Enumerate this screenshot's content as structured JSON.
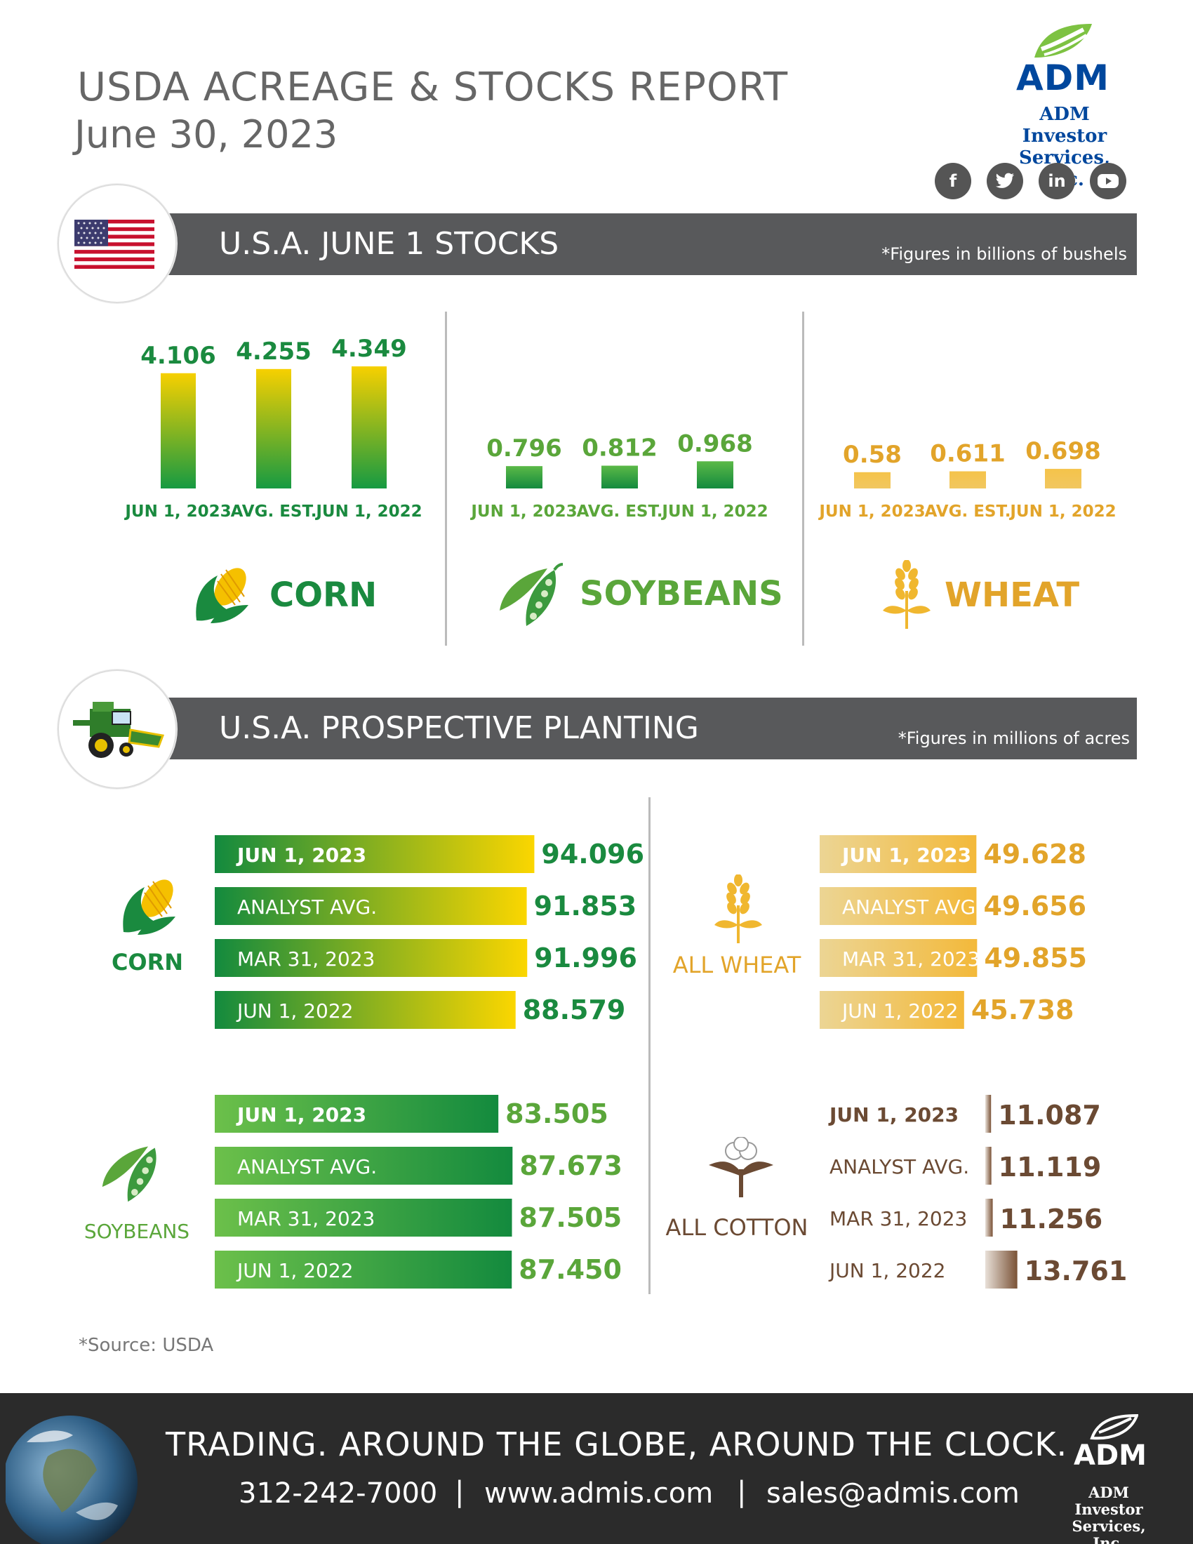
{
  "header": {
    "title": "USDA ACREAGE & STOCKS REPORT",
    "date": "June 30, 2023",
    "logo": "ADM",
    "logo_sub": "ADM Investor Services, Inc.",
    "social": [
      "f",
      "t",
      "in",
      "yt"
    ]
  },
  "stocks": {
    "title": "U.S.A. JUNE 1 STOCKS",
    "note": "*Figures in billions of bushels",
    "icon": "us-flag"
  },
  "planting": {
    "title": "U.S.A. PROSPECTIVE PLANTING",
    "note": "*Figures in millions of acres",
    "icon": "combine-harvester"
  },
  "source": "*Source: USDA",
  "footer": {
    "tagline": "TRADING. AROUND THE GLOBE, AROUND THE CLOCK.",
    "phone": "312-242-7000",
    "sep1": "|",
    "web": "www.admis.com",
    "sep2": "|",
    "email": "sales@admis.com",
    "logo": "ADM",
    "logo_sub": "ADM Investor Services, Inc."
  },
  "colors": {
    "corn_green": "#1a8a3f",
    "soy_green": "#5aa63a",
    "wheat_gold": "#e2a42a",
    "cotton_brown": "#6b4a33",
    "band_gray": "#58595b",
    "adm_blue": "#00479d"
  },
  "chart_data": [
    {
      "type": "bar",
      "name": "CORN",
      "categories": [
        "JUN 1, 2023",
        "AVG. EST.",
        "JUN 1, 2022"
      ],
      "values": [
        4.106,
        4.255,
        4.349
      ],
      "labels": [
        "4.106",
        "4.255",
        "4.349"
      ]
    },
    {
      "type": "bar",
      "name": "SOYBEANS",
      "categories": [
        "JUN 1, 2023",
        "AVG. EST.",
        "JUN 1, 2022"
      ],
      "values": [
        0.796,
        0.812,
        0.968
      ],
      "labels": [
        "0.796",
        "0.812",
        "0.968"
      ]
    },
    {
      "type": "bar",
      "name": "WHEAT",
      "categories": [
        "JUN 1, 2023",
        "AVG. EST.",
        "JUN 1, 2022"
      ],
      "values": [
        0.58,
        0.611,
        0.698
      ],
      "labels": [
        "0.58",
        "0.611",
        "0.698"
      ]
    },
    {
      "type": "bar",
      "orientation": "horizontal",
      "name": "CORN",
      "categories": [
        "JUN 1, 2023",
        "ANALYST AVG.",
        "MAR 31, 2023",
        "JUN 1, 2022"
      ],
      "values": [
        94.096,
        91.853,
        91.996,
        88.579
      ],
      "labels": [
        "94.096",
        "91.853",
        "91.996",
        "88.579"
      ]
    },
    {
      "type": "bar",
      "orientation": "horizontal",
      "name": "SOYBEANS",
      "categories": [
        "JUN 1, 2023",
        "ANALYST AVG.",
        "MAR 31, 2023",
        "JUN 1, 2022"
      ],
      "values": [
        83.505,
        87.673,
        87.505,
        87.45
      ],
      "labels": [
        "83.505",
        "87.673",
        "87.505",
        "87.450"
      ]
    },
    {
      "type": "bar",
      "orientation": "horizontal",
      "name": "ALL WHEAT",
      "categories": [
        "JUN 1, 2023",
        "ANALYST AVG.",
        "MAR 31, 2023",
        "JUN 1, 2022"
      ],
      "values": [
        49.628,
        49.656,
        49.855,
        45.738
      ],
      "labels": [
        "49.628",
        "49.656",
        "49.855",
        "45.738"
      ]
    },
    {
      "type": "bar",
      "orientation": "horizontal",
      "name": "ALL COTTON",
      "categories": [
        "JUN 1, 2023",
        "ANALYST AVG.",
        "MAR 31, 2023",
        "JUN 1, 2022"
      ],
      "values": [
        11.087,
        11.119,
        11.256,
        13.761
      ],
      "labels": [
        "11.087",
        "11.119",
        "11.256",
        "13.761"
      ]
    }
  ]
}
